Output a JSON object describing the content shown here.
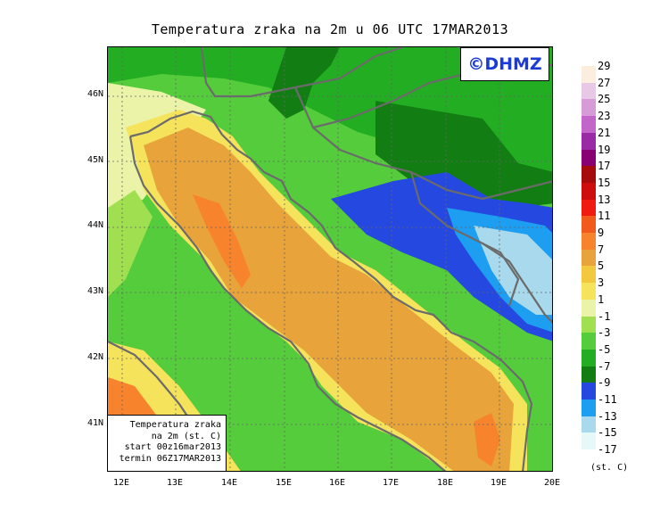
{
  "title": "Temperatura zraka na 2m u 06 UTC 17MAR2013",
  "logo": "©DHMZ",
  "info": {
    "line1": "Temperatura zraka",
    "line2": "na 2m (st. C)",
    "line3": "start 00z16mar2013",
    "line4": "termin 06Z17MAR2013"
  },
  "axes": {
    "lat_labels": [
      "46N",
      "45N",
      "44N",
      "43N",
      "42N",
      "41N"
    ],
    "lon_labels": [
      "12E",
      "13E",
      "14E",
      "15E",
      "16E",
      "17E",
      "18E",
      "19E",
      "20E"
    ]
  },
  "legend": {
    "unit": "(st. C)",
    "labels": [
      "29",
      "27",
      "25",
      "23",
      "21",
      "19",
      "17",
      "15",
      "13",
      "11",
      "9",
      "7",
      "5",
      "3",
      "1",
      "-1",
      "-3",
      "-5",
      "-7",
      "-9",
      "-11",
      "-13",
      "-15",
      "-17"
    ],
    "colors": [
      "#fbeede",
      "#e7c8e6",
      "#d79bd8",
      "#c266c9",
      "#9a2aa6",
      "#880071",
      "#a60c0c",
      "#cf0d0d",
      "#f01a10",
      "#f25a1c",
      "#f7842c",
      "#e8a33a",
      "#f1c83e",
      "#f6e35c",
      "#eaf3a8",
      "#a0e050",
      "#55cc3c",
      "#22ad22",
      "#127d12",
      "#2548e0",
      "#1e9ef0",
      "#a9d9ec",
      "#e6f8f8"
    ]
  },
  "map_colors": {
    "warm": "#e8a33a",
    "hot": "#f7842c",
    "yellow": "#f1c83e",
    "light_yellow": "#f6e35c",
    "pale": "#eaf3a8",
    "light_green": "#a0e050",
    "green": "#55cc3c",
    "mid_green": "#22ad22",
    "dark_green": "#127d12",
    "blue": "#2548e0",
    "light_blue": "#1e9ef0",
    "pale_blue": "#a9d9ec",
    "border": "#6b6b6b"
  }
}
